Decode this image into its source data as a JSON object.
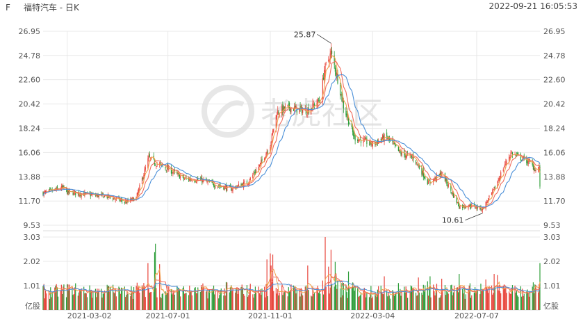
{
  "header": {
    "ticker": "F",
    "name": "福特汽车 - 日K",
    "timestamp": "2022-09-21 16:05:53"
  },
  "watermark": "老虎社区",
  "colors": {
    "up": "#e8453c",
    "down": "#2e9e3a",
    "ma5": "#f2a04a",
    "ma10": "#f06a5a",
    "ma20": "#4a8fd8",
    "grid": "#e8e8e8",
    "axis_text": "#555555"
  },
  "chart_data": [
    {
      "type": "candlestick",
      "title": "福特汽车 - 日K",
      "ylim": [
        9.53,
        26.95
      ],
      "y_ticks": [
        "26.95",
        "24.78",
        "22.60",
        "20.42",
        "18.24",
        "16.06",
        "13.88",
        "11.70",
        "9.53"
      ],
      "x_ticks": [
        "2021-03-02",
        "2021-07-01",
        "2021-11-01",
        "2022-03-04",
        "2022-07-07"
      ],
      "x_range": [
        "2021-02-01",
        "2022-09-21"
      ],
      "annotations": [
        {
          "label": "25.87",
          "date": "2022-01-13",
          "value": 25.87,
          "kind": "high"
        },
        {
          "label": "10.61",
          "date": "2022-07-14",
          "value": 10.61,
          "kind": "low"
        }
      ],
      "close_anchors": [
        [
          "2021-02-01",
          12.4
        ],
        [
          "2021-02-25",
          12.9
        ],
        [
          "2021-03-02",
          12.5
        ],
        [
          "2021-03-25",
          12.3
        ],
        [
          "2021-04-20",
          12.1
        ],
        [
          "2021-05-12",
          11.6
        ],
        [
          "2021-05-24",
          12.0
        ],
        [
          "2021-06-08",
          15.6
        ],
        [
          "2021-06-16",
          15.1
        ],
        [
          "2021-07-01",
          14.6
        ],
        [
          "2021-07-20",
          13.7
        ],
        [
          "2021-08-10",
          13.6
        ],
        [
          "2021-08-24",
          13.2
        ],
        [
          "2021-09-15",
          12.8
        ],
        [
          "2021-10-05",
          13.4
        ],
        [
          "2021-10-20",
          15.0
        ],
        [
          "2021-11-01",
          16.8
        ],
        [
          "2021-11-09",
          19.7
        ],
        [
          "2021-11-22",
          20.1
        ],
        [
          "2021-12-15",
          19.8
        ],
        [
          "2021-12-31",
          20.8
        ],
        [
          "2022-01-05",
          23.5
        ],
        [
          "2022-01-13",
          25.0
        ],
        [
          "2022-01-20",
          23.0
        ],
        [
          "2022-01-28",
          20.2
        ],
        [
          "2022-02-10",
          17.4
        ],
        [
          "2022-03-04",
          16.8
        ],
        [
          "2022-03-20",
          17.5
        ],
        [
          "2022-04-06",
          16.0
        ],
        [
          "2022-04-22",
          15.6
        ],
        [
          "2022-05-10",
          13.3
        ],
        [
          "2022-05-26",
          14.2
        ],
        [
          "2022-06-16",
          11.2
        ],
        [
          "2022-07-01",
          11.3
        ],
        [
          "2022-07-14",
          11.0
        ],
        [
          "2022-07-27",
          12.6
        ],
        [
          "2022-08-10",
          15.0
        ],
        [
          "2022-08-17",
          16.0
        ],
        [
          "2022-09-08",
          15.2
        ],
        [
          "2022-09-16",
          14.5
        ],
        [
          "2022-09-20",
          14.6
        ],
        [
          "2022-09-21",
          13.0
        ]
      ]
    },
    {
      "type": "bar",
      "title": "volume",
      "ylim": [
        0,
        3.03
      ],
      "y_ticks": [
        "3.03",
        "2.02",
        "1.01"
      ],
      "unit_label": "亿股",
      "spikes": [
        [
          "2021-06-07",
          1.95
        ],
        [
          "2021-06-15",
          2.4
        ],
        [
          "2021-06-16",
          2.75
        ],
        [
          "2021-06-21",
          1.9
        ],
        [
          "2021-10-28",
          2.1
        ],
        [
          "2021-11-01",
          2.35
        ],
        [
          "2021-11-02",
          1.85
        ],
        [
          "2021-11-04",
          2.3
        ],
        [
          "2021-12-16",
          1.85
        ],
        [
          "2022-01-06",
          3.03
        ],
        [
          "2022-01-10",
          1.8
        ],
        [
          "2022-01-13",
          2.5
        ],
        [
          "2022-01-18",
          2.0
        ],
        [
          "2022-02-03",
          1.6
        ],
        [
          "2022-03-18",
          1.4
        ],
        [
          "2022-04-28",
          1.35
        ],
        [
          "2022-05-12",
          1.4
        ],
        [
          "2022-05-26",
          1.3
        ],
        [
          "2022-06-16",
          1.5
        ],
        [
          "2022-07-28",
          1.5
        ],
        [
          "2022-08-01",
          1.45
        ],
        [
          "2022-09-21",
          1.95
        ]
      ]
    }
  ]
}
